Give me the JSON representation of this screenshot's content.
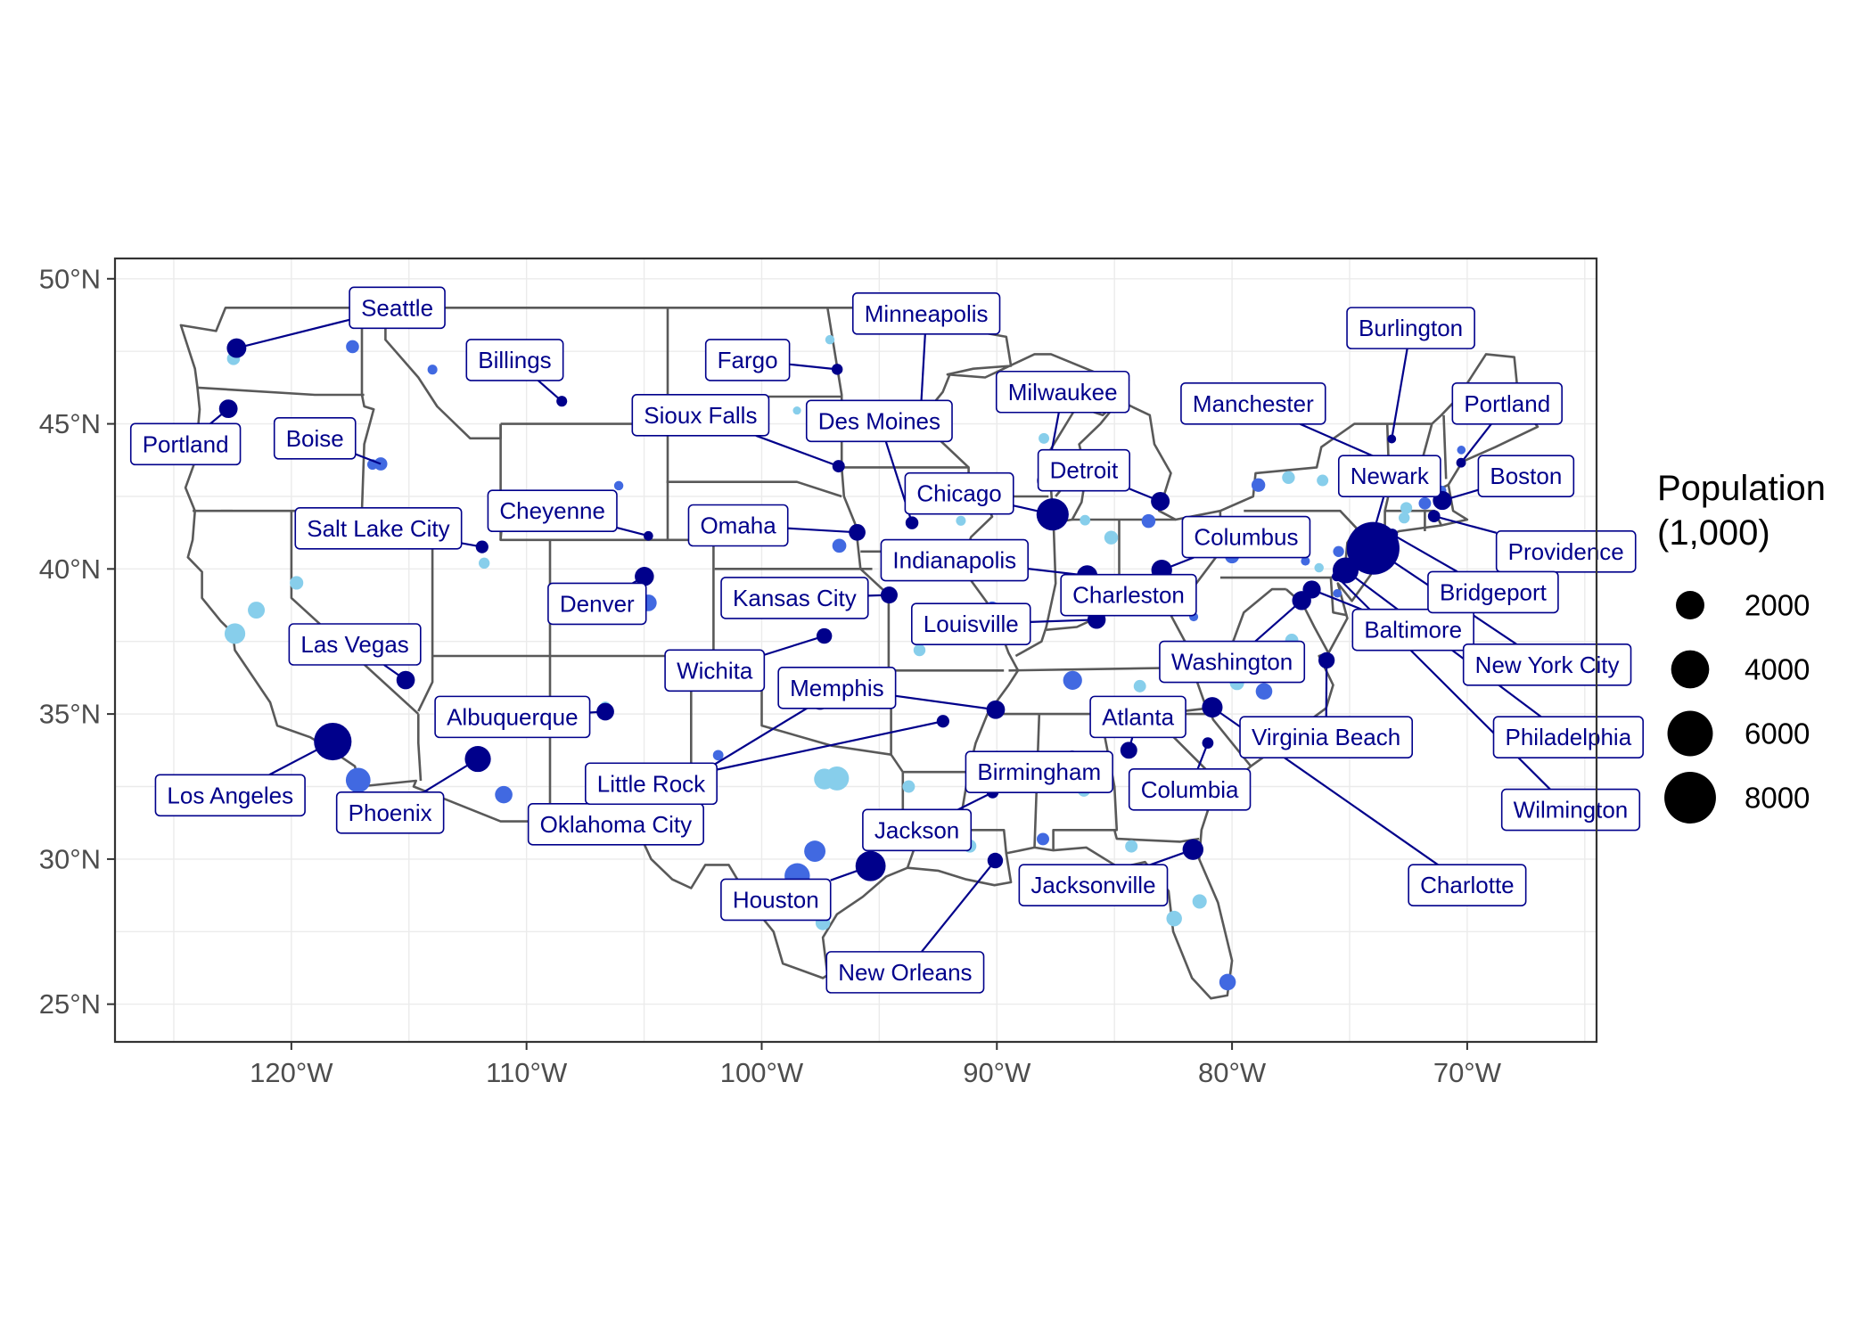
{
  "colors": {
    "label_text": "#00008b",
    "label_border": "#00008b",
    "leader_line": "#00008b",
    "boundary": "#595959",
    "panel_border": "#333333",
    "grid": "#ebebeb",
    "point_palette": [
      "#00008b",
      "#4169e1",
      "#87ceeb"
    ]
  },
  "chart_data": {
    "type": "map",
    "projection": "equirectangular",
    "xlim": [
      -127.5,
      -64.5
    ],
    "ylim": [
      23.7,
      50.7
    ],
    "x_ticks": [
      {
        "value": -120,
        "label": "120°W"
      },
      {
        "value": -110,
        "label": "110°W"
      },
      {
        "value": -100,
        "label": "100°W"
      },
      {
        "value": -90,
        "label": "90°W"
      },
      {
        "value": -80,
        "label": "80°W"
      },
      {
        "value": -70,
        "label": "70°W"
      }
    ],
    "y_ticks": [
      {
        "value": 25,
        "label": "25°N"
      },
      {
        "value": 30,
        "label": "30°N"
      },
      {
        "value": 35,
        "label": "35°N"
      },
      {
        "value": 40,
        "label": "40°N"
      },
      {
        "value": 45,
        "label": "45°N"
      },
      {
        "value": 50,
        "label": "50°N"
      }
    ],
    "legend": {
      "title_lines": [
        "Population",
        "(1,000)"
      ],
      "position": "right",
      "entries": [
        {
          "value": 2000,
          "label": "2000"
        },
        {
          "value": 4000,
          "label": "4000"
        },
        {
          "value": 6000,
          "label": "6000"
        },
        {
          "value": 8000,
          "label": "8000"
        }
      ]
    },
    "labeled_cities": [
      {
        "name": "Seattle",
        "lon": -122.33,
        "lat": 47.61,
        "pop": 750,
        "color": "#00008b",
        "label_lon": -115.5,
        "label_lat": 49.0
      },
      {
        "name": "Portland",
        "lon": -122.68,
        "lat": 45.52,
        "pop": 650,
        "color": "#00008b",
        "label_lon": -124.5,
        "label_lat": 44.3
      },
      {
        "name": "Boise",
        "lon": -116.2,
        "lat": 43.62,
        "pop": 230,
        "color": "#4169e1",
        "label_lon": -119.0,
        "label_lat": 44.5
      },
      {
        "name": "Billings",
        "lon": -108.5,
        "lat": 45.78,
        "pop": 110,
        "color": "#00008b",
        "label_lon": -110.5,
        "label_lat": 47.2
      },
      {
        "name": "Salt Lake City",
        "lon": -111.89,
        "lat": 40.76,
        "pop": 200,
        "color": "#00008b",
        "label_lon": -116.3,
        "label_lat": 41.4
      },
      {
        "name": "Cheyenne",
        "lon": -104.82,
        "lat": 41.14,
        "pop": 65,
        "color": "#00008b",
        "label_lon": -108.9,
        "label_lat": 42.0
      },
      {
        "name": "Denver",
        "lon": -104.99,
        "lat": 39.74,
        "pop": 715,
        "color": "#00008b",
        "label_lon": -107.0,
        "label_lat": 38.8
      },
      {
        "name": "Las Vegas",
        "lon": -115.14,
        "lat": 36.17,
        "pop": 640,
        "color": "#00008b",
        "label_lon": -117.3,
        "label_lat": 37.4
      },
      {
        "name": "Los Angeles",
        "lon": -118.24,
        "lat": 34.05,
        "pop": 3900,
        "color": "#00008b",
        "label_lon": -122.6,
        "label_lat": 32.2
      },
      {
        "name": "Phoenix",
        "lon": -112.07,
        "lat": 33.45,
        "pop": 1600,
        "color": "#00008b",
        "label_lon": -115.8,
        "label_lat": 31.6
      },
      {
        "name": "Albuquerque",
        "lon": -106.65,
        "lat": 35.08,
        "pop": 560,
        "color": "#00008b",
        "label_lon": -110.6,
        "label_lat": 34.9
      },
      {
        "name": "Oklahoma City",
        "lon": -97.52,
        "lat": 35.47,
        "pop": 680,
        "color": "#00008b",
        "label_lon": -106.2,
        "label_lat": 31.2
      },
      {
        "name": "Fargo",
        "lon": -96.79,
        "lat": 46.88,
        "pop": 125,
        "color": "#00008b",
        "label_lon": -100.6,
        "label_lat": 47.2
      },
      {
        "name": "Minneapolis",
        "lon": -93.27,
        "lat": 44.98,
        "pop": 430,
        "color": "#00008b",
        "label_lon": -93.0,
        "label_lat": 48.8
      },
      {
        "name": "Sioux Falls",
        "lon": -96.73,
        "lat": 43.54,
        "pop": 190,
        "color": "#00008b",
        "label_lon": -102.6,
        "label_lat": 45.3
      },
      {
        "name": "Des Moines",
        "lon": -93.61,
        "lat": 41.59,
        "pop": 215,
        "color": "#00008b",
        "label_lon": -95.0,
        "label_lat": 45.1
      },
      {
        "name": "Omaha",
        "lon": -95.94,
        "lat": 41.26,
        "pop": 480,
        "color": "#00008b",
        "label_lon": -101.0,
        "label_lat": 41.5
      },
      {
        "name": "Kansas City",
        "lon": -94.58,
        "lat": 39.1,
        "pop": 500,
        "color": "#00008b",
        "label_lon": -98.6,
        "label_lat": 39.0
      },
      {
        "name": "Wichita",
        "lon": -97.34,
        "lat": 37.69,
        "pop": 390,
        "color": "#00008b",
        "label_lon": -102.0,
        "label_lat": 36.5
      },
      {
        "name": "Little Rock",
        "lon": -92.29,
        "lat": 34.75,
        "pop": 200,
        "color": "#00008b",
        "label_lon": -104.7,
        "label_lat": 32.6
      },
      {
        "name": "Memphis",
        "lon": -90.05,
        "lat": 35.15,
        "pop": 650,
        "color": "#00008b",
        "label_lon": -96.8,
        "label_lat": 35.9
      },
      {
        "name": "Chicago",
        "lon": -87.63,
        "lat": 41.88,
        "pop": 2700,
        "color": "#00008b",
        "label_lon": -91.6,
        "label_lat": 42.6
      },
      {
        "name": "Milwaukee",
        "lon": -87.91,
        "lat": 43.04,
        "pop": 590,
        "color": "#00008b",
        "label_lon": -87.2,
        "label_lat": 46.1
      },
      {
        "name": "Detroit",
        "lon": -83.05,
        "lat": 42.33,
        "pop": 670,
        "color": "#00008b",
        "label_lon": -86.3,
        "label_lat": 43.4
      },
      {
        "name": "Indianapolis",
        "lon": -86.16,
        "lat": 39.77,
        "pop": 870,
        "color": "#00008b",
        "label_lon": -91.8,
        "label_lat": 40.3
      },
      {
        "name": "Louisville",
        "lon": -85.76,
        "lat": 38.25,
        "pop": 620,
        "color": "#00008b",
        "label_lon": -91.1,
        "label_lat": 38.1
      },
      {
        "name": "Columbus",
        "lon": -82.99,
        "lat": 39.96,
        "pop": 890,
        "color": "#00008b",
        "label_lon": -79.4,
        "label_lat": 41.1
      },
      {
        "name": "Charleston",
        "lon": -81.63,
        "lat": 38.35,
        "pop": 50,
        "color": "#4169e1",
        "label_lon": -84.4,
        "label_lat": 39.1
      },
      {
        "name": "Washington",
        "lon": -77.04,
        "lat": 38.91,
        "pop": 700,
        "color": "#00008b",
        "label_lon": -80.0,
        "label_lat": 36.8
      },
      {
        "name": "Baltimore",
        "lon": -76.61,
        "lat": 39.29,
        "pop": 600,
        "color": "#00008b",
        "label_lon": -72.3,
        "label_lat": 37.9
      },
      {
        "name": "Atlanta",
        "lon": -84.39,
        "lat": 33.75,
        "pop": 500,
        "color": "#00008b",
        "label_lon": -84.0,
        "label_lat": 34.9
      },
      {
        "name": "Birmingham",
        "lon": -86.8,
        "lat": 33.52,
        "pop": 210,
        "color": "#00008b",
        "label_lon": -88.2,
        "label_lat": 33.0
      },
      {
        "name": "Columbia",
        "lon": -81.03,
        "lat": 34.0,
        "pop": 135,
        "color": "#00008b",
        "label_lon": -81.8,
        "label_lat": 32.4
      },
      {
        "name": "Charlotte",
        "lon": -80.84,
        "lat": 35.23,
        "pop": 870,
        "color": "#00008b",
        "label_lon": -70.0,
        "label_lat": 29.1
      },
      {
        "name": "Virginia Beach",
        "lon": -75.98,
        "lat": 36.85,
        "pop": 450,
        "color": "#00008b",
        "label_lon": -76.0,
        "label_lat": 34.2
      },
      {
        "name": "Jackson",
        "lon": -90.18,
        "lat": 32.3,
        "pop": 160,
        "color": "#00008b",
        "label_lon": -93.4,
        "label_lat": 31.0
      },
      {
        "name": "Jacksonville",
        "lon": -81.66,
        "lat": 30.33,
        "pop": 900,
        "color": "#00008b",
        "label_lon": -85.9,
        "label_lat": 29.1
      },
      {
        "name": "Houston",
        "lon": -95.37,
        "lat": 29.76,
        "pop": 2300,
        "color": "#00008b",
        "label_lon": -99.4,
        "label_lat": 28.6
      },
      {
        "name": "New Orleans",
        "lon": -90.07,
        "lat": 29.95,
        "pop": 390,
        "color": "#00008b",
        "label_lon": -93.9,
        "label_lat": 26.1
      },
      {
        "name": "Burlington",
        "lon": -73.21,
        "lat": 44.48,
        "pop": 45,
        "color": "#00008b",
        "label_lon": -72.4,
        "label_lat": 48.3
      },
      {
        "name": "Manchester",
        "lon": -71.46,
        "lat": 42.99,
        "pop": 115,
        "color": "#00008b",
        "label_lon": -79.1,
        "label_lat": 45.7
      },
      {
        "name": "Portland",
        "lon": -70.26,
        "lat": 43.66,
        "pop": 70,
        "color": "#00008b",
        "label_lon": -68.3,
        "label_lat": 45.7
      },
      {
        "name": "Newark",
        "lon": -74.17,
        "lat": 40.74,
        "pop": 280,
        "color": "#00008b",
        "label_lon": -73.3,
        "label_lat": 43.2
      },
      {
        "name": "Boston",
        "lon": -71.06,
        "lat": 42.36,
        "pop": 690,
        "color": "#00008b",
        "label_lon": -67.5,
        "label_lat": 43.2
      },
      {
        "name": "Providence",
        "lon": -71.41,
        "lat": 41.82,
        "pop": 180,
        "color": "#00008b",
        "label_lon": -65.8,
        "label_lat": 40.6
      },
      {
        "name": "Bridgeport",
        "lon": -73.19,
        "lat": 41.19,
        "pop": 145,
        "color": "#00008b",
        "label_lon": -68.9,
        "label_lat": 39.2
      },
      {
        "name": "New York City",
        "lon": -74.0,
        "lat": 40.71,
        "pop": 8400,
        "color": "#00008b",
        "label_lon": -66.6,
        "label_lat": 36.7
      },
      {
        "name": "Philadelphia",
        "lon": -75.17,
        "lat": 39.95,
        "pop": 1580,
        "color": "#00008b",
        "label_lon": -65.7,
        "label_lat": 34.2
      },
      {
        "name": "Wilmington",
        "lon": -75.55,
        "lat": 39.74,
        "pop": 70,
        "color": "#00008b",
        "label_lon": -65.6,
        "label_lat": 31.7
      }
    ],
    "other_cities": [
      {
        "lon": -122.4,
        "lat": 37.77,
        "pop": 880,
        "color": "#87ceeb"
      },
      {
        "lon": -121.49,
        "lat": 38.58,
        "pop": 500,
        "color": "#87ceeb"
      },
      {
        "lon": -119.78,
        "lat": 39.52,
        "pop": 250,
        "color": "#87ceeb"
      },
      {
        "lon": -117.16,
        "lat": 32.72,
        "pop": 1400,
        "color": "#4169e1"
      },
      {
        "lon": -117.4,
        "lat": 47.66,
        "pop": 220,
        "color": "#4169e1"
      },
      {
        "lon": -114.0,
        "lat": 46.87,
        "pop": 75,
        "color": "#4169e1"
      },
      {
        "lon": -122.46,
        "lat": 47.25,
        "pop": 220,
        "color": "#87ceeb"
      },
      {
        "lon": -111.8,
        "lat": 40.2,
        "pop": 120,
        "color": "#87ceeb"
      },
      {
        "lon": -116.55,
        "lat": 43.6,
        "pop": 100,
        "color": "#4169e1"
      },
      {
        "lon": -110.97,
        "lat": 32.22,
        "pop": 550,
        "color": "#4169e1"
      },
      {
        "lon": -106.5,
        "lat": 31.76,
        "pop": 680,
        "color": "#4169e1"
      },
      {
        "lon": -106.65,
        "lat": 35.25,
        "pop": 100,
        "color": "#87ceeb"
      },
      {
        "lon": -101.85,
        "lat": 33.58,
        "pop": 100,
        "color": "#4169e1"
      },
      {
        "lon": -104.82,
        "lat": 38.83,
        "pop": 480,
        "color": "#4169e1"
      },
      {
        "lon": -106.08,
        "lat": 42.87,
        "pop": 60,
        "color": "#4169e1"
      },
      {
        "lon": -97.74,
        "lat": 30.27,
        "pop": 950,
        "color": "#4169e1"
      },
      {
        "lon": -96.8,
        "lat": 32.78,
        "pop": 1300,
        "color": "#87ceeb"
      },
      {
        "lon": -97.33,
        "lat": 32.76,
        "pop": 900,
        "color": "#87ceeb"
      },
      {
        "lon": -98.49,
        "lat": 29.42,
        "pop": 1500,
        "color": "#4169e1"
      },
      {
        "lon": -97.4,
        "lat": 27.8,
        "pop": 320,
        "color": "#87ceeb"
      },
      {
        "lon": -96.7,
        "lat": 40.8,
        "pop": 280,
        "color": "#4169e1"
      },
      {
        "lon": -97.1,
        "lat": 47.9,
        "pop": 60,
        "color": "#87ceeb"
      },
      {
        "lon": -98.5,
        "lat": 45.46,
        "pop": 30,
        "color": "#87ceeb"
      },
      {
        "lon": -93.29,
        "lat": 37.2,
        "pop": 165,
        "color": "#87ceeb"
      },
      {
        "lon": -90.2,
        "lat": 38.63,
        "pop": 310,
        "color": "#4169e1"
      },
      {
        "lon": -89.65,
        "lat": 39.8,
        "pop": 115,
        "color": "#87ceeb"
      },
      {
        "lon": -91.53,
        "lat": 41.66,
        "pop": 75,
        "color": "#87ceeb"
      },
      {
        "lon": -93.1,
        "lat": 44.95,
        "pop": 300,
        "color": "#00008b"
      },
      {
        "lon": -88.0,
        "lat": 44.5,
        "pop": 105,
        "color": "#87ceeb"
      },
      {
        "lon": -86.25,
        "lat": 41.68,
        "pop": 100,
        "color": "#87ceeb"
      },
      {
        "lon": -85.67,
        "lat": 42.96,
        "pop": 200,
        "color": "#4169e1"
      },
      {
        "lon": -83.55,
        "lat": 41.65,
        "pop": 270,
        "color": "#4169e1"
      },
      {
        "lon": -81.69,
        "lat": 41.5,
        "pop": 380,
        "color": "#4169e1"
      },
      {
        "lon": -84.51,
        "lat": 39.1,
        "pop": 300,
        "color": "#4169e1"
      },
      {
        "lon": -85.14,
        "lat": 41.08,
        "pop": 265,
        "color": "#87ceeb"
      },
      {
        "lon": -86.78,
        "lat": 36.16,
        "pop": 690,
        "color": "#4169e1"
      },
      {
        "lon": -85.3,
        "lat": 35.05,
        "pop": 180,
        "color": "#4169e1"
      },
      {
        "lon": -83.92,
        "lat": 35.96,
        "pop": 185,
        "color": "#87ceeb"
      },
      {
        "lon": -86.3,
        "lat": 32.37,
        "pop": 200,
        "color": "#87ceeb"
      },
      {
        "lon": -88.04,
        "lat": 30.69,
        "pop": 190,
        "color": "#4169e1"
      },
      {
        "lon": -91.15,
        "lat": 30.45,
        "pop": 225,
        "color": "#87ceeb"
      },
      {
        "lon": -93.75,
        "lat": 32.5,
        "pop": 190,
        "color": "#87ceeb"
      },
      {
        "lon": -84.28,
        "lat": 30.44,
        "pop": 190,
        "color": "#87ceeb"
      },
      {
        "lon": -82.46,
        "lat": 27.95,
        "pop": 390,
        "color": "#87ceeb"
      },
      {
        "lon": -80.19,
        "lat": 25.76,
        "pop": 470,
        "color": "#4169e1"
      },
      {
        "lon": -81.38,
        "lat": 28.54,
        "pop": 300,
        "color": "#87ceeb"
      },
      {
        "lon": -79.93,
        "lat": 32.78,
        "pop": 140,
        "color": "#87ceeb"
      },
      {
        "lon": -78.64,
        "lat": 35.78,
        "pop": 470,
        "color": "#4169e1"
      },
      {
        "lon": -79.79,
        "lat": 36.07,
        "pop": 300,
        "color": "#87ceeb"
      },
      {
        "lon": -77.46,
        "lat": 37.54,
        "pop": 230,
        "color": "#87ceeb"
      },
      {
        "lon": -80.0,
        "lat": 40.44,
        "pop": 300,
        "color": "#4169e1"
      },
      {
        "lon": -77.6,
        "lat": 43.15,
        "pop": 210,
        "color": "#87ceeb"
      },
      {
        "lon": -78.88,
        "lat": 42.89,
        "pop": 260,
        "color": "#4169e1"
      },
      {
        "lon": -76.15,
        "lat": 43.05,
        "pop": 145,
        "color": "#87ceeb"
      },
      {
        "lon": -73.76,
        "lat": 42.65,
        "pop": 100,
        "color": "#87ceeb"
      },
      {
        "lon": -72.59,
        "lat": 42.1,
        "pop": 155,
        "color": "#87ceeb"
      },
      {
        "lon": -72.68,
        "lat": 41.76,
        "pop": 125,
        "color": "#87ceeb"
      },
      {
        "lon": -71.8,
        "lat": 42.26,
        "pop": 185,
        "color": "#4169e1"
      },
      {
        "lon": -74.2,
        "lat": 40.72,
        "pop": 150,
        "color": "#4169e1"
      },
      {
        "lon": -74.03,
        "lat": 40.74,
        "pop": 250,
        "color": "#4169e1"
      },
      {
        "lon": -75.12,
        "lat": 39.93,
        "pop": 75,
        "color": "#4169e1"
      },
      {
        "lon": -75.47,
        "lat": 40.6,
        "pop": 120,
        "color": "#4169e1"
      },
      {
        "lon": -76.3,
        "lat": 40.04,
        "pop": 60,
        "color": "#87ceeb"
      },
      {
        "lon": -76.88,
        "lat": 40.27,
        "pop": 50,
        "color": "#4169e1"
      },
      {
        "lon": -77.2,
        "lat": 38.9,
        "pop": 120,
        "color": "#87ceeb"
      },
      {
        "lon": -75.52,
        "lat": 39.16,
        "pop": 40,
        "color": "#4169e1"
      },
      {
        "lon": -71.1,
        "lat": 42.7,
        "pop": 80,
        "color": "#4169e1"
      },
      {
        "lon": -70.25,
        "lat": 44.1,
        "pop": 40,
        "color": "#4169e1"
      }
    ]
  }
}
